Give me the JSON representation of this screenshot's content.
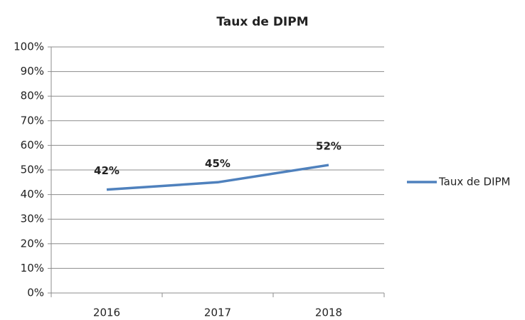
{
  "chart_data": {
    "type": "line",
    "title": "Taux de DIPM",
    "categories": [
      "2016",
      "2017",
      "2018"
    ],
    "series": [
      {
        "name": "Taux de DIPM",
        "color": "#4f81bd",
        "values": [
          42,
          45,
          52
        ],
        "value_labels": [
          "42%",
          "45%",
          "52%"
        ]
      }
    ],
    "ylim": [
      0,
      100
    ],
    "yticks": [
      {
        "value": 0,
        "label": "0%"
      },
      {
        "value": 10,
        "label": "10%"
      },
      {
        "value": 20,
        "label": "20%"
      },
      {
        "value": 30,
        "label": "30%"
      },
      {
        "value": 40,
        "label": "40%"
      },
      {
        "value": 50,
        "label": "50%"
      },
      {
        "value": 60,
        "label": "60%"
      },
      {
        "value": 70,
        "label": "70%"
      },
      {
        "value": 80,
        "label": "80%"
      },
      {
        "value": 90,
        "label": "90%"
      },
      {
        "value": 100,
        "label": "100%"
      }
    ],
    "grid": true,
    "legend": "right"
  }
}
